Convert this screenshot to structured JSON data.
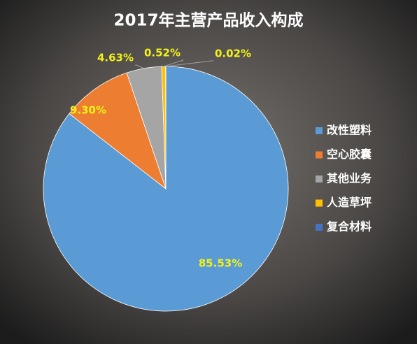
{
  "chart_data": {
    "type": "pie",
    "title": "2017年主营产品收入构成",
    "categories": [
      "改性塑料",
      "空心胶囊",
      "其他业务",
      "人造草坪",
      "复合材料"
    ],
    "values": [
      85.53,
      9.3,
      4.63,
      0.52,
      0.02
    ],
    "value_labels": [
      "85.53%",
      "9.30%",
      "4.63%",
      "0.52%",
      "0.02%"
    ],
    "colors": [
      "#5b9bd5",
      "#ed7d31",
      "#a5a5a5",
      "#ffc000",
      "#4472c4"
    ],
    "legend": "right"
  }
}
